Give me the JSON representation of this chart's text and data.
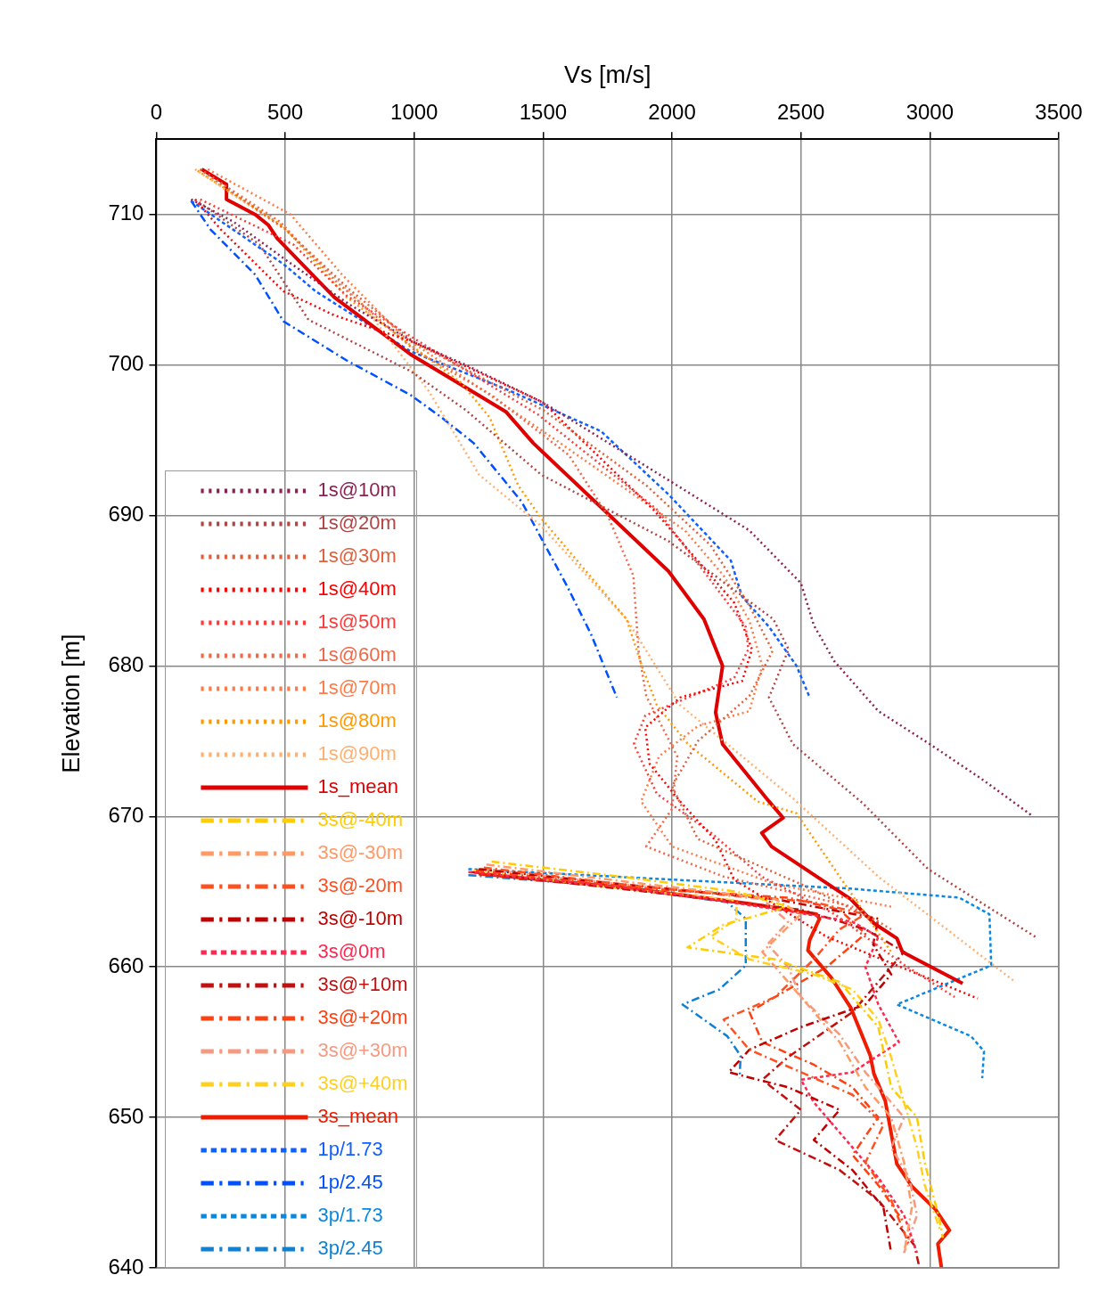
{
  "chart_data": {
    "type": "line",
    "xlabel": "Vs [m/s]",
    "ylabel": "Elevation [m]",
    "xlim": [
      0,
      3500
    ],
    "xticks": [
      0,
      500,
      1000,
      1500,
      2000,
      2500,
      3000,
      3500
    ],
    "ylim": [
      640,
      715
    ],
    "yticks": [
      640,
      650,
      660,
      670,
      680,
      690,
      700,
      710
    ],
    "grid": true,
    "legend": "bottom left",
    "marker": "none",
    "series": [
      {
        "name": "1s@10m",
        "color": "#8b2252",
        "line_style": "dotted",
        "x": [
          135,
          300,
          500,
          750,
          1000,
          1200,
          1500,
          2000,
          2300,
          2500,
          2550,
          2630,
          2800,
          3000,
          3200,
          3400
        ],
        "values": [
          711,
          709.5,
          707,
          704,
          701.5,
          700,
          697.5,
          692.2,
          689,
          685.5,
          682.7,
          680.3,
          677,
          674.8,
          672.5,
          670
        ]
      },
      {
        "name": "1s@20m",
        "color": "#b04545",
        "line_style": "dotted",
        "x": [
          150,
          400,
          590,
          985,
          1200,
          1493,
          1986,
          2393,
          2452,
          2376,
          2469,
          2738,
          2993,
          3418
        ],
        "values": [
          711,
          708,
          703,
          699.6,
          697,
          692.7,
          688.3,
          683.1,
          681.1,
          677.9,
          674.8,
          670.9,
          666.5,
          661.9
        ]
      },
      {
        "name": "1s@30m",
        "color": "#e0603c",
        "line_style": "dotted",
        "x": [
          170,
          500,
          750,
          1000,
          1500,
          1900,
          2150,
          2300,
          2390,
          2300,
          2100,
          2000,
          2100,
          2500,
          2800
        ],
        "values": [
          713,
          709,
          705,
          701.5,
          697,
          692,
          688,
          684,
          681,
          678,
          675,
          672,
          668.5,
          665.5,
          663
        ]
      },
      {
        "name": "1s@40m",
        "color": "#ff0000",
        "line_style": "dotted",
        "x": [
          150,
          250,
          493,
          690,
          1000,
          1500,
          1927,
          2241,
          2310,
          2272,
          2031,
          1896,
          1913,
          2031,
          2169,
          2241,
          2600,
          3186
        ],
        "values": [
          711,
          709,
          704.9,
          703.3,
          701.5,
          697.5,
          690.4,
          684.2,
          681.1,
          679,
          677.9,
          675.9,
          673.5,
          671,
          668.4,
          665.8,
          662,
          657.9
        ]
      },
      {
        "name": "1s@50m",
        "color": "#ff3a3a",
        "line_style": "dotted",
        "x": [
          170,
          531,
          738,
          986,
          1480,
          1941,
          2286,
          2296,
          2241,
          1896,
          1852,
          1941,
          2152,
          2348,
          2631,
          2903,
          3096
        ],
        "values": [
          711,
          708,
          704.6,
          701.9,
          696.7,
          690.4,
          682.6,
          681.1,
          679.2,
          676.7,
          674.8,
          671.5,
          668.9,
          666,
          663.5,
          660.1,
          658
        ]
      },
      {
        "name": "1s@60m",
        "color": "#f06848",
        "line_style": "dotted",
        "x": [
          170,
          480,
          700,
          1000,
          1300,
          1600,
          1750,
          1850,
          1870,
          1900,
          2020,
          2000,
          1900,
          2200,
          2700,
          2850
        ],
        "values": [
          713,
          709.5,
          705.5,
          701,
          698,
          694,
          690,
          686,
          681,
          678,
          674,
          670.5,
          668,
          666,
          664,
          662.5
        ]
      },
      {
        "name": "1s@70m",
        "color": "#ff7a45",
        "line_style": "dotted",
        "x": [
          200,
          520,
          720,
          950,
          1250,
          1550,
          1800,
          2050,
          2200,
          2300,
          2350,
          2300,
          2100,
          1950,
          1880,
          2000,
          2400,
          2850
        ],
        "values": [
          713,
          710,
          706,
          702,
          698.5,
          695,
          692,
          689,
          686,
          683,
          680,
          677,
          676,
          674,
          671,
          668,
          665.5,
          664
        ]
      },
      {
        "name": "1s@80m",
        "color": "#ff9900",
        "line_style": "dotted",
        "x": [
          160,
          493,
          738,
          1183,
          1293,
          1403,
          1493,
          1824,
          1883,
          1941,
          2062,
          2331,
          2483,
          2650,
          2850
        ],
        "values": [
          712.9,
          709.2,
          704.5,
          698.8,
          696.5,
          692,
          689.8,
          683.1,
          680,
          677.4,
          674.8,
          671,
          670.2,
          666,
          661
        ]
      },
      {
        "name": "1s@90m",
        "color": "#ffb070",
        "line_style": "dotted",
        "x": [
          150,
          500,
          800,
          1055,
          1252,
          1493,
          1824,
          2031,
          2469,
          2800,
          3331
        ],
        "values": [
          713,
          709,
          704,
          698.3,
          692.7,
          689.3,
          683.1,
          677.4,
          671.2,
          666,
          659
        ]
      },
      {
        "name": "1s_mean",
        "color": "#e00000",
        "line_style": "solid",
        "x": [
          176,
          272,
          272,
          383,
          434,
          469,
          690,
          986,
          1355,
          1462,
          1986,
          2124,
          2196,
          2169,
          2196,
          2376,
          2431,
          2348,
          2386,
          2693,
          2783,
          2872,
          2893,
          3127
        ],
        "values": [
          713,
          712,
          711,
          710,
          709.3,
          708.4,
          704.5,
          700.7,
          696.9,
          694.8,
          686.3,
          683.1,
          680,
          676.9,
          674.8,
          671,
          669.9,
          668.9,
          668,
          664.5,
          662.9,
          661.9,
          661,
          658.9
        ]
      },
      {
        "name": "3s@-40m",
        "color": "#ffcc00",
        "line_style": "dashdot",
        "x": [
          1300,
          1800,
          2250,
          2450,
          2200,
          2060,
          2400,
          2650,
          2800,
          2850,
          2950,
          2980,
          3040,
          3050
        ],
        "values": [
          667,
          666,
          665,
          664,
          662.8,
          661.3,
          660.5,
          659,
          656,
          652,
          650,
          647,
          643,
          642
        ]
      },
      {
        "name": "3s@-30m",
        "color": "#ff9966",
        "line_style": "dashdot",
        "x": [
          1280,
          1900,
          2400,
          2500,
          2350,
          2450,
          2550,
          2650,
          2750,
          2850,
          2900,
          2930,
          2900
        ],
        "values": [
          666.8,
          665.5,
          664.5,
          663.5,
          661,
          659,
          657,
          655,
          652,
          650,
          647,
          644,
          641
        ]
      },
      {
        "name": "3s@-20m",
        "color": "#ff5020",
        "line_style": "dashdot",
        "x": [
          1270,
          1900,
          2550,
          2750,
          2650,
          2550,
          2400,
          2200,
          2300,
          2500,
          2700,
          2820,
          2750,
          2850,
          2920
        ],
        "values": [
          666.6,
          665.3,
          664.3,
          663.5,
          662.5,
          660.5,
          658,
          656.5,
          654.5,
          653,
          651.5,
          649.5,
          647,
          644.5,
          641.5
        ]
      },
      {
        "name": "3s@-10m",
        "color": "#c00000",
        "line_style": "dashdot",
        "x": [
          1250,
          1800,
          2400,
          2800,
          2780,
          2850,
          2750,
          2500,
          2300,
          2220,
          2450,
          2650,
          2550,
          2700,
          2820,
          2850
        ],
        "values": [
          666.5,
          665.5,
          664.5,
          663.2,
          661.5,
          659.5,
          657.5,
          656,
          654.5,
          653,
          652,
          650.5,
          648.5,
          646.5,
          644,
          641
        ]
      },
      {
        "name": "3s@0m",
        "color": "#ff2850",
        "line_style": "dashed",
        "x": [
          1210,
          1800,
          2150,
          2450,
          2700,
          2800,
          2750,
          2800,
          2880,
          2700,
          2500,
          2550,
          2700,
          2800,
          2900,
          2950
        ],
        "values": [
          666.3,
          665.3,
          664.5,
          663.7,
          663,
          662,
          660,
          657.5,
          655,
          653,
          652.5,
          651,
          648,
          646,
          643.5,
          641
        ]
      },
      {
        "name": "3s@+10m",
        "color": "#c01010",
        "line_style": "dashdot",
        "x": [
          1220,
          1900,
          2500,
          2750,
          2900,
          2800,
          2700,
          2450,
          2350,
          2500,
          2400,
          2650,
          2800,
          2940,
          2960
        ],
        "values": [
          666.3,
          665,
          663.8,
          662.5,
          661,
          659,
          657,
          654,
          652.5,
          650.5,
          648.5,
          646.5,
          644.5,
          641.5,
          640
        ]
      },
      {
        "name": "3s@+20m",
        "color": "#ff4010",
        "line_style": "dashdot",
        "x": [
          1240,
          1900,
          2450,
          2650,
          2750,
          2600,
          2450,
          2300,
          2350,
          2550,
          2700,
          2800,
          2700,
          2800,
          2900
        ],
        "values": [
          666.4,
          665.2,
          664.6,
          663.8,
          662.2,
          660,
          658.5,
          657,
          655,
          653.5,
          652,
          650,
          647.5,
          645.5,
          643
        ]
      },
      {
        "name": "3s@+30m",
        "color": "#f59a80",
        "line_style": "dashdot",
        "x": [
          1260,
          1850,
          2350,
          2450,
          2370,
          2450,
          2500,
          2650,
          2750,
          2900,
          2850,
          2920,
          2950,
          2900
        ],
        "values": [
          666.5,
          665.4,
          664.5,
          663,
          661.5,
          660,
          658,
          655.5,
          653,
          650,
          648,
          646,
          643.5,
          641
        ]
      },
      {
        "name": "3s@+40m",
        "color": "#ffd020",
        "line_style": "dashdot",
        "x": [
          1230,
          1700,
          2250,
          2250,
          2150,
          2300,
          2550,
          2700,
          2800,
          2850,
          2900,
          2950,
          2980,
          3040
        ],
        "values": [
          666.4,
          665.4,
          664.4,
          663.2,
          662,
          660.5,
          659.5,
          658.5,
          656.5,
          654,
          651,
          648,
          645.5,
          642.5
        ]
      },
      {
        "name": "3s_mean",
        "color": "#f01c00",
        "line_style": "solid",
        "x": [
          1250,
          1800,
          2300,
          2560,
          2572,
          2534,
          2527,
          2617,
          2693,
          2769,
          2783,
          2827,
          2858,
          2872,
          2931,
          3021,
          3076,
          3031,
          3045
        ],
        "values": [
          666.2,
          665.3,
          664.2,
          663.5,
          663.2,
          661.8,
          661.1,
          659.3,
          657.3,
          654.1,
          652.9,
          651.1,
          648.2,
          646.9,
          645.4,
          643.9,
          642.5,
          641.6,
          640
        ]
      },
      {
        "name": "1p/1.73",
        "color": "#1060ff",
        "line_style": "dashed",
        "x": [
          135,
          493,
          617,
          986,
          1355,
          1724,
          1986,
          2228,
          2272,
          2376,
          2483,
          2534
        ],
        "values": [
          710.9,
          706.7,
          704.9,
          700.9,
          698.4,
          695.6,
          691.4,
          687,
          684.6,
          682.6,
          680,
          677.9
        ]
      },
      {
        "name": "1p/2.45",
        "color": "#0050ff",
        "line_style": "dashdot",
        "x": [
          135,
          210,
          383,
          493,
          738,
          986,
          1107,
          1231,
          1417,
          1596,
          1686,
          1786
        ],
        "values": [
          710.9,
          709,
          706,
          702.9,
          700.3,
          698,
          696.5,
          694.8,
          690.9,
          685.2,
          682.1,
          677.9
        ]
      },
      {
        "name": "3p/1.73",
        "color": "#0a88e0",
        "line_style": "dashed",
        "x": [
          1210,
          2000,
          2693,
          3114,
          3231,
          3238,
          2872,
          3159,
          3210,
          3203
        ],
        "values": [
          666.5,
          665.8,
          665.2,
          664.6,
          663.5,
          660.1,
          657.5,
          655.4,
          654.4,
          652.6
        ]
      },
      {
        "name": "3p/2.45",
        "color": "#1080d0",
        "line_style": "dashdot",
        "x": [
          1210,
          1800,
          2214,
          2286,
          2286,
          2183,
          2041,
          2214,
          2266,
          2262
        ],
        "values": [
          666.1,
          665.3,
          664.3,
          663.2,
          660.1,
          658.5,
          657.5,
          655.4,
          654.1,
          652.6
        ]
      }
    ]
  }
}
